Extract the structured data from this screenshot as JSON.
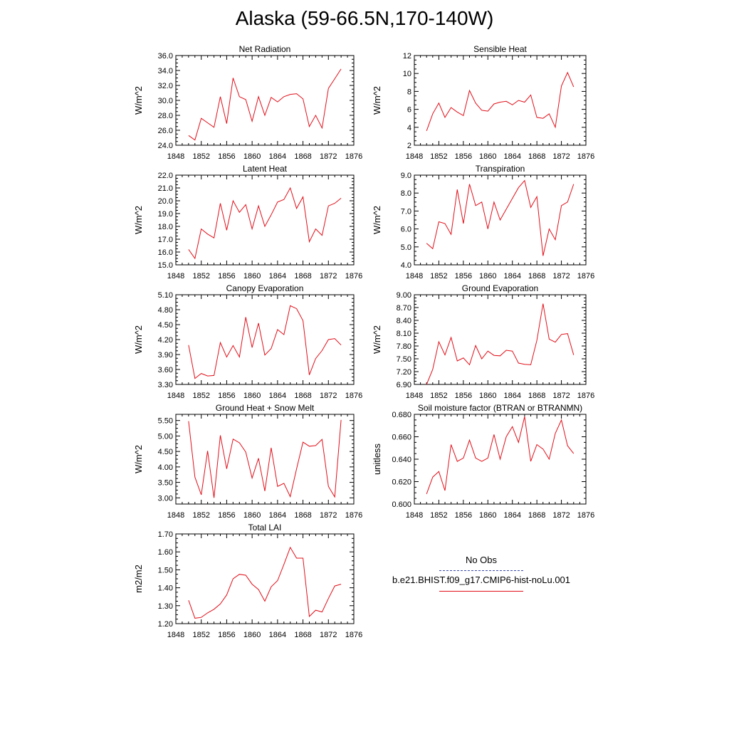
{
  "title": "Alaska (59-66.5N,170-140W)",
  "legend": {
    "obs_label": "No Obs",
    "model_label": "b.e21.BHIST.f09_g17.CMIP6-hist-noLu.001",
    "obs_color": "#3a4aa8",
    "model_color": "#e0101a"
  },
  "chart_data": [
    {
      "type": "line",
      "title": "Net Radiation",
      "ylabel": "W/m^2",
      "xlim": [
        1848,
        1876
      ],
      "xticks": [
        "1848",
        "1852",
        "1856",
        "1860",
        "1864",
        "1868",
        "1872",
        "1876"
      ],
      "ylim": [
        24,
        36
      ],
      "yticks": [
        "24.0",
        "26.0",
        "28.0",
        "30.0",
        "32.0",
        "34.0",
        "36.0"
      ],
      "series": [
        {
          "color": "#e0101a",
          "x": [
            1850,
            1851,
            1852,
            1853,
            1854,
            1855,
            1856,
            1857,
            1858,
            1859,
            1860,
            1861,
            1862,
            1863,
            1864,
            1865,
            1866,
            1867,
            1868,
            1869,
            1870,
            1871,
            1872,
            1873,
            1874
          ],
          "y": [
            25.3,
            24.7,
            27.6,
            27.0,
            26.4,
            30.5,
            26.9,
            33.0,
            30.5,
            30.1,
            27.2,
            30.5,
            28.0,
            30.4,
            29.8,
            30.5,
            30.8,
            30.9,
            30.2,
            26.5,
            28.0,
            26.3,
            31.6,
            32.9,
            34.2
          ]
        }
      ]
    },
    {
      "type": "line",
      "title": "Sensible Heat",
      "ylabel": "W/m^2",
      "xlim": [
        1848,
        1876
      ],
      "xticks": [
        "1848",
        "1852",
        "1856",
        "1860",
        "1864",
        "1868",
        "1872",
        "1876"
      ],
      "ylim": [
        2,
        12
      ],
      "yticks": [
        "2",
        "4",
        "6",
        "8",
        "10",
        "12"
      ],
      "series": [
        {
          "color": "#e0101a",
          "x": [
            1850,
            1851,
            1852,
            1853,
            1854,
            1855,
            1856,
            1857,
            1858,
            1859,
            1860,
            1861,
            1862,
            1863,
            1864,
            1865,
            1866,
            1867,
            1868,
            1869,
            1870,
            1871,
            1872,
            1873,
            1874
          ],
          "y": [
            3.6,
            5.5,
            6.7,
            5.1,
            6.2,
            5.7,
            5.3,
            8.1,
            6.7,
            5.9,
            5.8,
            6.6,
            6.8,
            6.9,
            6.5,
            7.0,
            6.8,
            7.6,
            5.1,
            5.0,
            5.5,
            4.0,
            8.6,
            10.1,
            8.5
          ]
        }
      ]
    },
    {
      "type": "line",
      "title": "Latent Heat",
      "ylabel": "W/m^2",
      "xlim": [
        1848,
        1876
      ],
      "xticks": [
        "1848",
        "1852",
        "1856",
        "1860",
        "1864",
        "1868",
        "1872",
        "1876"
      ],
      "ylim": [
        15,
        22
      ],
      "yticks": [
        "15.0",
        "16.0",
        "17.0",
        "18.0",
        "19.0",
        "20.0",
        "21.0",
        "22.0"
      ],
      "series": [
        {
          "color": "#e0101a",
          "x": [
            1850,
            1851,
            1852,
            1853,
            1854,
            1855,
            1856,
            1857,
            1858,
            1859,
            1860,
            1861,
            1862,
            1863,
            1864,
            1865,
            1866,
            1867,
            1868,
            1869,
            1870,
            1871,
            1872,
            1873,
            1874
          ],
          "y": [
            16.2,
            15.5,
            17.8,
            17.4,
            17.1,
            19.8,
            17.7,
            20.0,
            19.1,
            19.7,
            17.8,
            19.6,
            18.0,
            18.9,
            19.9,
            20.1,
            21.0,
            19.4,
            20.3,
            16.8,
            17.8,
            17.3,
            19.6,
            19.8,
            20.2
          ]
        }
      ]
    },
    {
      "type": "line",
      "title": "Transpiration",
      "ylabel": "W/m^2",
      "xlim": [
        1848,
        1876
      ],
      "xticks": [
        "1848",
        "1852",
        "1856",
        "1860",
        "1864",
        "1868",
        "1872",
        "1876"
      ],
      "ylim": [
        4,
        9
      ],
      "yticks": [
        "4.0",
        "5.0",
        "6.0",
        "7.0",
        "8.0",
        "9.0"
      ],
      "series": [
        {
          "color": "#e0101a",
          "x": [
            1850,
            1851,
            1852,
            1853,
            1854,
            1855,
            1856,
            1857,
            1858,
            1859,
            1860,
            1861,
            1862,
            1863,
            1864,
            1865,
            1866,
            1867,
            1868,
            1869,
            1870,
            1871,
            1872,
            1873,
            1874
          ],
          "y": [
            5.2,
            4.9,
            6.4,
            6.3,
            5.7,
            8.2,
            6.3,
            8.5,
            7.3,
            7.5,
            6.0,
            7.5,
            6.5,
            7.1,
            7.7,
            8.3,
            8.7,
            7.2,
            7.8,
            4.5,
            6.0,
            5.4,
            7.3,
            7.5,
            8.5
          ]
        }
      ]
    },
    {
      "type": "line",
      "title": "Canopy Evaporation",
      "ylabel": "W/m^2",
      "xlim": [
        1848,
        1876
      ],
      "xticks": [
        "1848",
        "1852",
        "1856",
        "1860",
        "1864",
        "1868",
        "1872",
        "1876"
      ],
      "ylim": [
        3.3,
        5.1
      ],
      "yticks": [
        "3.30",
        "3.60",
        "3.90",
        "4.20",
        "4.50",
        "4.80",
        "5.10"
      ],
      "series": [
        {
          "color": "#e0101a",
          "x": [
            1850,
            1851,
            1852,
            1853,
            1854,
            1855,
            1856,
            1857,
            1858,
            1859,
            1860,
            1861,
            1862,
            1863,
            1864,
            1865,
            1866,
            1867,
            1868,
            1869,
            1870,
            1871,
            1872,
            1873,
            1874
          ],
          "y": [
            4.09,
            3.42,
            3.52,
            3.47,
            3.48,
            4.14,
            3.85,
            4.08,
            3.85,
            4.65,
            4.04,
            4.53,
            3.89,
            4.02,
            4.4,
            4.3,
            4.88,
            4.82,
            4.58,
            3.49,
            3.82,
            3.98,
            4.2,
            4.22,
            4.09
          ]
        }
      ]
    },
    {
      "type": "line",
      "title": "Ground Evaporation",
      "ylabel": "W/m^2",
      "xlim": [
        1848,
        1876
      ],
      "xticks": [
        "1848",
        "1852",
        "1856",
        "1860",
        "1864",
        "1868",
        "1872",
        "1876"
      ],
      "ylim": [
        6.9,
        9.0
      ],
      "yticks": [
        "6.90",
        "7.20",
        "7.50",
        "7.80",
        "8.10",
        "8.40",
        "8.70",
        "9.00"
      ],
      "series": [
        {
          "color": "#e0101a",
          "x": [
            1850,
            1851,
            1852,
            1853,
            1854,
            1855,
            1856,
            1857,
            1858,
            1859,
            1860,
            1861,
            1862,
            1863,
            1864,
            1865,
            1866,
            1867,
            1868,
            1869,
            1870,
            1871,
            1872,
            1873,
            1874
          ],
          "y": [
            6.9,
            7.25,
            7.9,
            7.59,
            8.0,
            7.45,
            7.52,
            7.36,
            7.81,
            7.5,
            7.68,
            7.58,
            7.57,
            7.7,
            7.68,
            7.4,
            7.37,
            7.36,
            7.93,
            8.79,
            7.96,
            7.89,
            8.07,
            8.09,
            7.59
          ]
        }
      ]
    },
    {
      "type": "line",
      "title": "Ground Heat + Snow Melt",
      "ylabel": "W/m^2",
      "xlim": [
        1848,
        1876
      ],
      "xticks": [
        "1848",
        "1852",
        "1856",
        "1860",
        "1864",
        "1868",
        "1872",
        "1876"
      ],
      "ylim": [
        2.8,
        5.7
      ],
      "yticks": [
        "3.00",
        "3.50",
        "4.00",
        "4.50",
        "5.00",
        "5.50"
      ],
      "series": [
        {
          "color": "#e0101a",
          "x": [
            1850,
            1851,
            1852,
            1853,
            1854,
            1855,
            1856,
            1857,
            1858,
            1859,
            1860,
            1861,
            1862,
            1863,
            1864,
            1865,
            1866,
            1867,
            1868,
            1869,
            1870,
            1871,
            1872,
            1873,
            1874
          ],
          "y": [
            5.48,
            3.67,
            3.1,
            4.52,
            3.0,
            5.02,
            3.94,
            4.9,
            4.78,
            4.48,
            3.64,
            4.28,
            3.22,
            4.62,
            3.37,
            3.47,
            3.04,
            3.94,
            4.8,
            4.67,
            4.69,
            4.89,
            3.37,
            3.03,
            5.52
          ]
        }
      ]
    },
    {
      "type": "line",
      "title": "Soil moisture factor (BTRAN or BTRANMN)",
      "ylabel": "unitless",
      "xlim": [
        1848,
        1876
      ],
      "xticks": [
        "1848",
        "1852",
        "1856",
        "1860",
        "1864",
        "1868",
        "1872",
        "1876"
      ],
      "ylim": [
        0.6,
        0.68
      ],
      "yticks": [
        "0.600",
        "0.620",
        "0.640",
        "0.660",
        "0.680"
      ],
      "series": [
        {
          "color": "#e0101a",
          "x": [
            1850,
            1851,
            1852,
            1853,
            1854,
            1855,
            1856,
            1857,
            1858,
            1859,
            1860,
            1861,
            1862,
            1863,
            1864,
            1865,
            1866,
            1867,
            1868,
            1869,
            1870,
            1871,
            1872,
            1873,
            1874
          ],
          "y": [
            0.609,
            0.624,
            0.629,
            0.612,
            0.653,
            0.638,
            0.641,
            0.657,
            0.641,
            0.638,
            0.641,
            0.662,
            0.64,
            0.66,
            0.669,
            0.655,
            0.678,
            0.638,
            0.653,
            0.649,
            0.64,
            0.663,
            0.675,
            0.652,
            0.645
          ]
        }
      ]
    },
    {
      "type": "line",
      "title": "Total LAI",
      "ylabel": "m2/m2",
      "xlim": [
        1848,
        1876
      ],
      "xticks": [
        "1848",
        "1852",
        "1856",
        "1860",
        "1864",
        "1868",
        "1872",
        "1876"
      ],
      "ylim": [
        1.2,
        1.7
      ],
      "yticks": [
        "1.20",
        "1.30",
        "1.40",
        "1.50",
        "1.60",
        "1.70"
      ],
      "series": [
        {
          "color": "#e0101a",
          "x": [
            1850,
            1851,
            1852,
            1853,
            1854,
            1855,
            1856,
            1857,
            1858,
            1859,
            1860,
            1861,
            1862,
            1863,
            1864,
            1865,
            1866,
            1867,
            1868,
            1869,
            1870,
            1871,
            1872,
            1873,
            1874
          ],
          "y": [
            1.33,
            1.23,
            1.235,
            1.26,
            1.28,
            1.31,
            1.36,
            1.45,
            1.475,
            1.47,
            1.42,
            1.39,
            1.325,
            1.405,
            1.44,
            1.53,
            1.625,
            1.565,
            1.565,
            1.24,
            1.275,
            1.265,
            1.34,
            1.41,
            1.42
          ]
        }
      ]
    }
  ]
}
